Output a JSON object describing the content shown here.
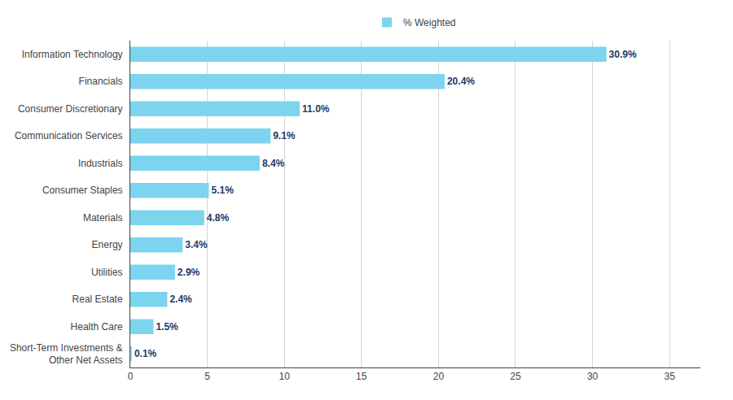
{
  "chart_data": {
    "type": "bar",
    "orientation": "horizontal",
    "categories": [
      "Short-Term Investments &\nOther Net Assets",
      "Health Care",
      "Real Estate",
      "Utilities",
      "Energy",
      "Materials",
      "Consumer Staples",
      "Industrials",
      "Communication Services",
      "Consumer Discretionary",
      "Financials",
      "Information Technology"
    ],
    "series": [
      {
        "name": "% Weighted",
        "color": "#7DD4EE",
        "values": [
          0.1,
          1.5,
          2.4,
          2.9,
          3.4,
          4.8,
          5.1,
          8.4,
          9.1,
          11.0,
          20.4,
          30.9
        ],
        "value_labels": [
          "0.1%",
          "1.5%",
          "2.4%",
          "2.9%",
          "3.4%",
          "4.8%",
          "5.1%",
          "8.4%",
          "9.1%",
          "11.0%",
          "20.4%",
          "30.9%"
        ]
      }
    ],
    "xlim": [
      0,
      37
    ],
    "xticks": [
      0,
      5,
      10,
      15,
      20,
      25,
      30,
      35
    ],
    "grid": true,
    "legend": "top",
    "data_labels": true
  }
}
